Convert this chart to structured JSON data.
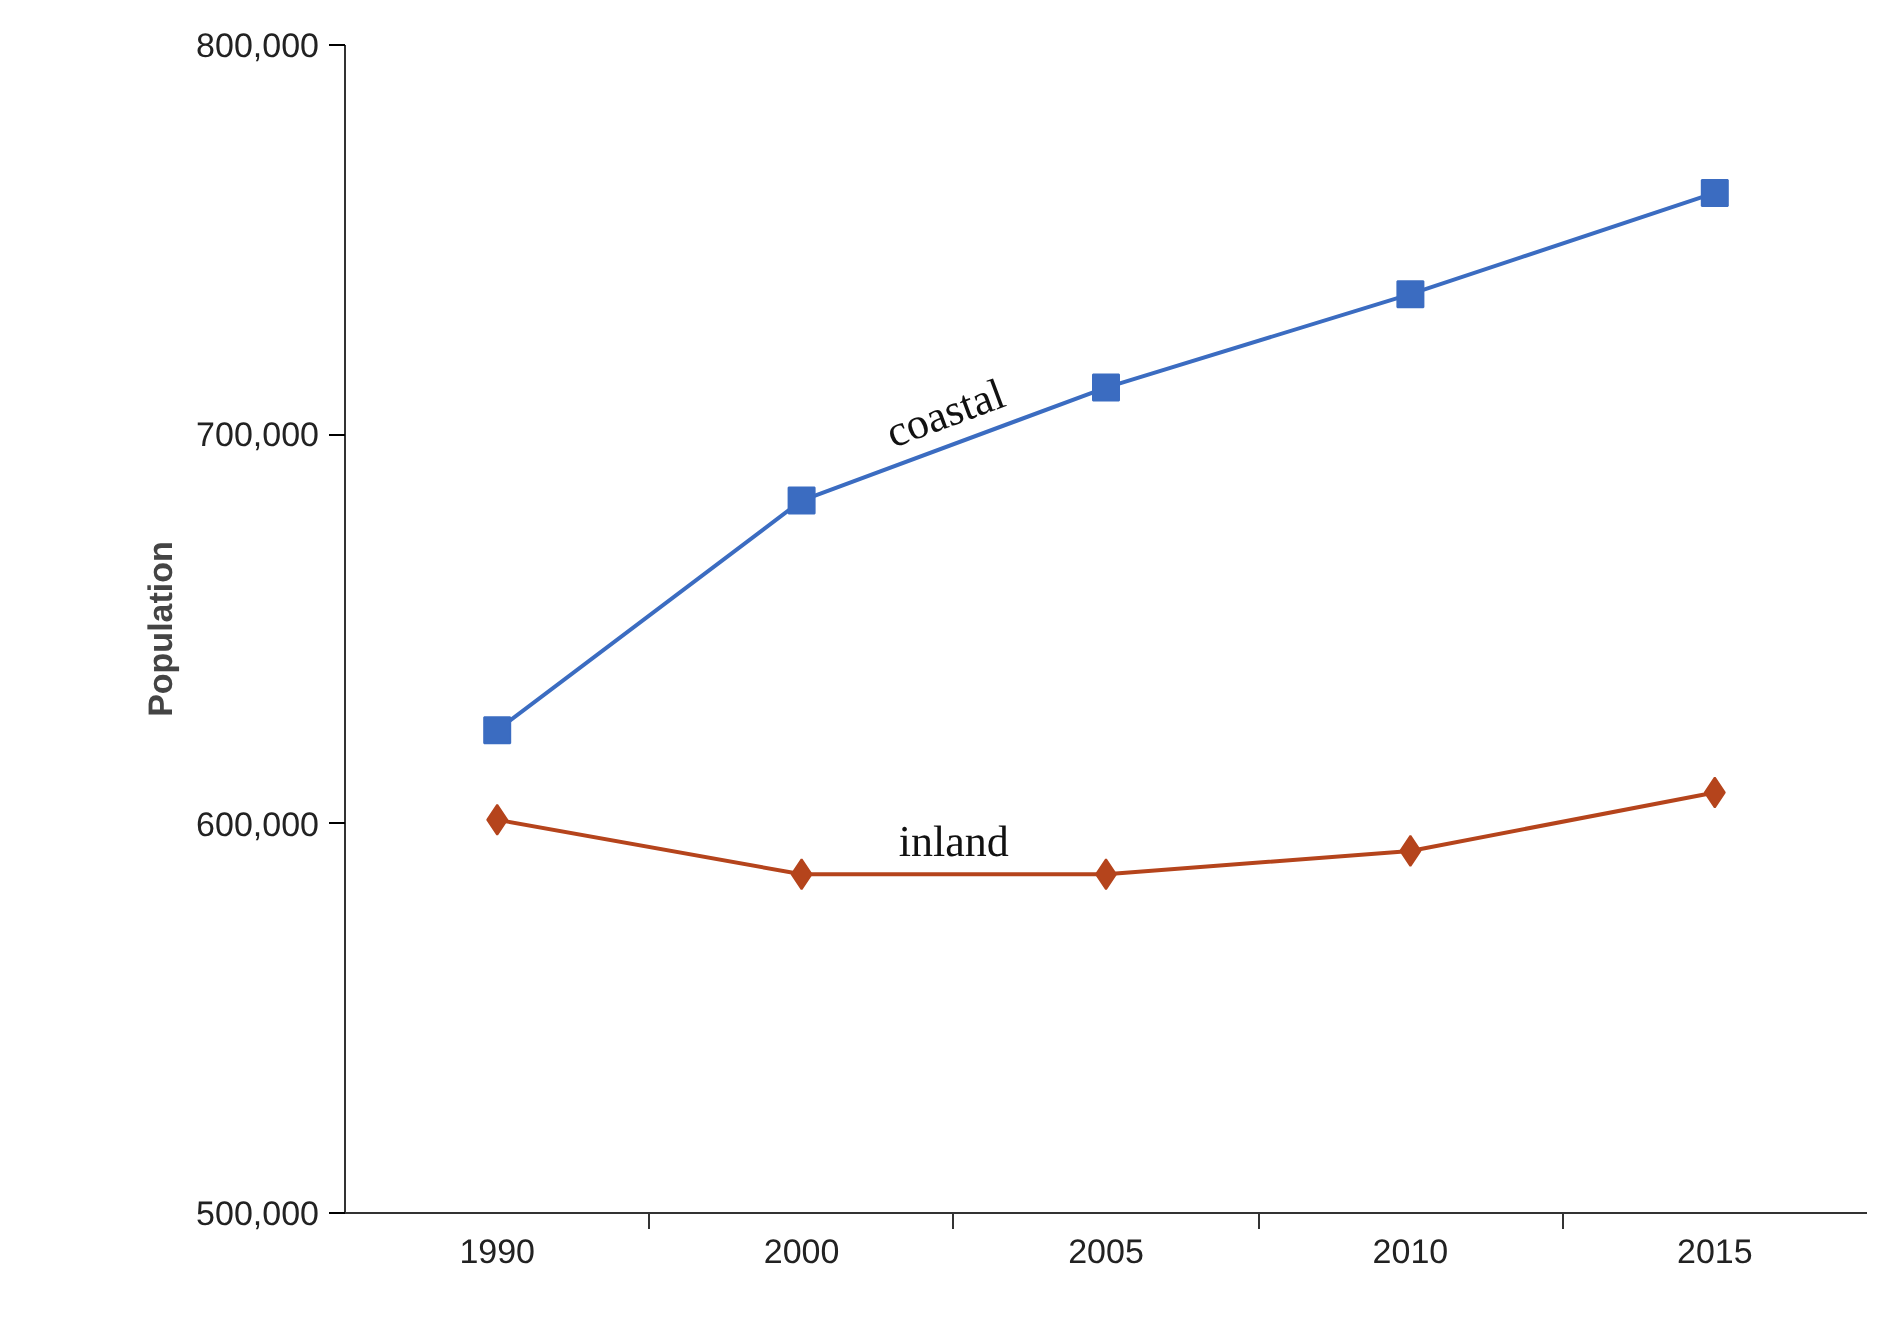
{
  "chart_data": {
    "type": "line",
    "ylabel": "Population",
    "categories": [
      "1990",
      "2000",
      "2005",
      "2010",
      "2015"
    ],
    "series": [
      {
        "name": "coastal",
        "color": "#3b6cc1",
        "marker": "square",
        "values": [
          624000,
          683000,
          712000,
          736000,
          762000
        ]
      },
      {
        "name": "inland",
        "color": "#b5441c",
        "marker": "diamond",
        "values": [
          601000,
          587000,
          587000,
          593000,
          608000
        ]
      }
    ],
    "ylim": [
      500000,
      800000
    ],
    "yticks": [
      {
        "value": 500000,
        "label": "500,000"
      },
      {
        "value": 600000,
        "label": "600,000"
      },
      {
        "value": 700000,
        "label": "700,000"
      },
      {
        "value": 800000,
        "label": "800,000"
      }
    ],
    "grid": false,
    "line_style": "solid"
  }
}
